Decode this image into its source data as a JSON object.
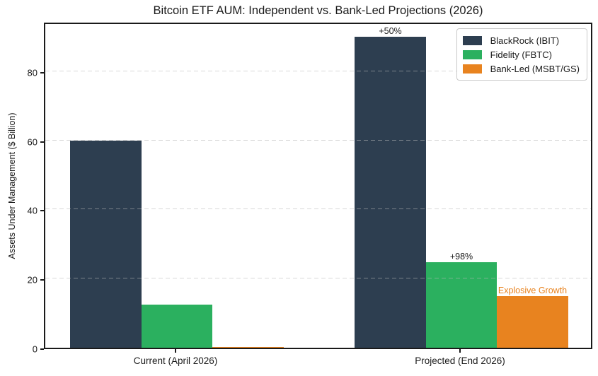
{
  "chart_data": {
    "type": "bar",
    "title": "Bitcoin ETF AUM: Independent vs. Bank-Led Projections (2026)",
    "xlabel": "",
    "ylabel": "Assets Under Management ($ Billion)",
    "categories": [
      "Current (April 2026)",
      "Projected (End 2026)"
    ],
    "series": [
      {
        "name": "BlackRock (IBIT)",
        "color": "#2d3e50",
        "values": [
          60,
          90
        ]
      },
      {
        "name": "Fidelity (FBTC)",
        "color": "#2bb05f",
        "values": [
          12.5,
          24.75
        ]
      },
      {
        "name": "Bank-Led (MSBT/GS)",
        "color": "#e8831f",
        "values": [
          0.3,
          15
        ]
      }
    ],
    "yticks": [
      0,
      20,
      40,
      60,
      80
    ],
    "ylim": [
      0,
      94.5
    ],
    "grid": "horizontal-dashed",
    "legend_position": "upper-right",
    "annotations": [
      {
        "text": "+50%",
        "category_index": 1,
        "series_index": 0,
        "color": "#1a1a1a"
      },
      {
        "text": "+98%",
        "category_index": 1,
        "series_index": 1,
        "color": "#1a1a1a"
      },
      {
        "text": "Explosive Growth",
        "category_index": 1,
        "series_index": 2,
        "color": "#e8831f"
      }
    ]
  }
}
